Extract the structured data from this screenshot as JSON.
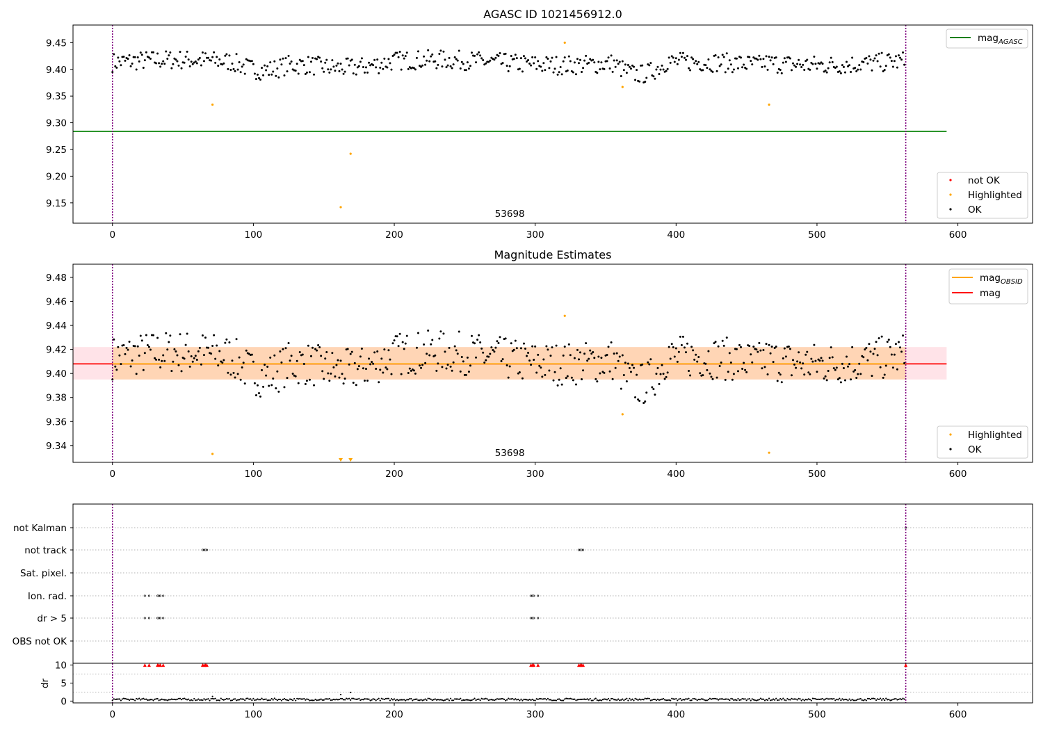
{
  "chart_data": [
    {
      "type": "scatter",
      "title": "AGASC ID 1021456912.0",
      "xlim": [
        -28,
        653
      ],
      "ylim": [
        9.112,
        9.483
      ],
      "xticks": [
        0,
        100,
        200,
        300,
        400,
        500,
        600
      ],
      "yticks": [
        9.15,
        9.2,
        9.25,
        9.3,
        9.35,
        9.4,
        9.45
      ],
      "ytick_format": 2,
      "vlines": [
        0,
        563
      ],
      "annotation": "53698",
      "hlines": [
        {
          "name": "mag",
          "subscript": "AGASC",
          "y": 9.284,
          "x": [
            -28,
            592
          ],
          "color": "#008000"
        }
      ],
      "series": [
        {
          "name": "OK",
          "color": "#000000",
          "note": "≈560 points, x 0–563, mean ≈9.41, spread ±0.03"
        },
        {
          "name": "Highlighted",
          "color": "#ffa500",
          "points": [
            [
              71,
              9.334
            ],
            [
              162,
              9.142
            ],
            [
              169,
              9.242
            ],
            [
              321,
              9.45
            ],
            [
              362,
              9.367
            ],
            [
              466,
              9.334
            ]
          ]
        },
        {
          "name": "not OK",
          "color": "#ff0000",
          "points": []
        }
      ],
      "legends": [
        {
          "position": "top-right",
          "entries": [
            {
              "label": "mag",
              "sub": "AGASC",
              "kind": "line",
              "color": "#008000"
            }
          ]
        },
        {
          "position": "lower-right",
          "entries": [
            {
              "label": "not OK",
              "kind": "dot",
              "color": "#ff0000"
            },
            {
              "label": "Highlighted",
              "kind": "dot",
              "color": "#ffa500"
            },
            {
              "label": "OK",
              "kind": "dot",
              "color": "#000000"
            }
          ]
        }
      ]
    },
    {
      "type": "scatter",
      "title": "Magnitude Estimates",
      "xlim": [
        -28,
        653
      ],
      "ylim": [
        9.326,
        9.491
      ],
      "xticks": [
        0,
        100,
        200,
        300,
        400,
        500,
        600
      ],
      "yticks": [
        9.34,
        9.36,
        9.38,
        9.4,
        9.42,
        9.44,
        9.46,
        9.48
      ],
      "ytick_format": 2,
      "vlines": [
        0,
        563
      ],
      "annotation": "53698",
      "bands": [
        {
          "y": [
            9.395,
            9.422
          ],
          "x": [
            -28,
            592
          ],
          "color": "#ffc0cb",
          "opacity": 0.45
        },
        {
          "y": [
            9.395,
            9.422
          ],
          "x": [
            0,
            563
          ],
          "color": "#ffa500",
          "opacity": 0.22
        }
      ],
      "hlines": [
        {
          "name": "mag",
          "y": 9.408,
          "x": [
            -28,
            592
          ],
          "color": "#ff0000"
        },
        {
          "name": "mag",
          "subscript": "OBSID",
          "y": 9.408,
          "x": [
            0,
            563
          ],
          "color": "#ffa500"
        }
      ],
      "series": [
        {
          "name": "OK",
          "color": "#000000",
          "note": "same light curve, mean ≈9.41"
        },
        {
          "name": "Highlighted",
          "color": "#ffa500",
          "points": [
            [
              71,
              9.333
            ],
            [
              321,
              9.448
            ],
            [
              362,
              9.366
            ],
            [
              466,
              9.334
            ]
          ],
          "below_range": [
            162,
            169
          ]
        }
      ],
      "legends": [
        {
          "position": "top-right",
          "entries": [
            {
              "label": "mag",
              "sub": "OBSID",
              "kind": "line",
              "color": "#ffa500"
            },
            {
              "label": "mag",
              "kind": "line",
              "color": "#ff0000"
            }
          ]
        },
        {
          "position": "lower-right",
          "entries": [
            {
              "label": "Highlighted",
              "kind": "dot",
              "color": "#ffa500"
            },
            {
              "label": "OK",
              "kind": "dot",
              "color": "#000000"
            }
          ]
        }
      ]
    },
    {
      "type": "scatter",
      "title": "",
      "xlim": [
        -28,
        653
      ],
      "vlines": [
        0,
        563
      ],
      "categories": [
        "not Kalman",
        "not track",
        "Sat. pixel.",
        "Ion. rad.",
        "dr > 5",
        "OBS not OK"
      ],
      "flags": {
        "not Kalman": [
          563
        ],
        "not track": [
          64,
          65,
          66,
          67,
          331,
          332,
          333,
          334
        ],
        "Sat. pixel.": [],
        "Ion. rad.": [
          23,
          26,
          32,
          33,
          34,
          36,
          297,
          298,
          299,
          302
        ],
        "dr > 5": [
          23,
          26,
          32,
          33,
          34,
          36,
          297,
          298,
          299,
          302
        ],
        "OBS not OK": []
      }
    },
    {
      "type": "scatter",
      "title": "",
      "ylabel": "dr",
      "xlim": [
        -28,
        653
      ],
      "ylim": [
        -0.5,
        10.5
      ],
      "xticks": [
        0,
        100,
        200,
        300,
        400,
        500,
        600
      ],
      "yticks": [
        0,
        5,
        10
      ],
      "ytick_format": 0,
      "vlines": [
        0,
        563
      ],
      "series": [
        {
          "name": "dr",
          "color": "#000000",
          "note": "≈0.2–0.7 for most points; spikes near 71, 162, 169"
        },
        {
          "name": "dr clipped",
          "color": "#ff0000",
          "marker": "triangle",
          "x": [
            23,
            26,
            32,
            33,
            34,
            36,
            64,
            65,
            66,
            67,
            297,
            298,
            299,
            302,
            331,
            332,
            333,
            334,
            563
          ]
        }
      ]
    }
  ]
}
